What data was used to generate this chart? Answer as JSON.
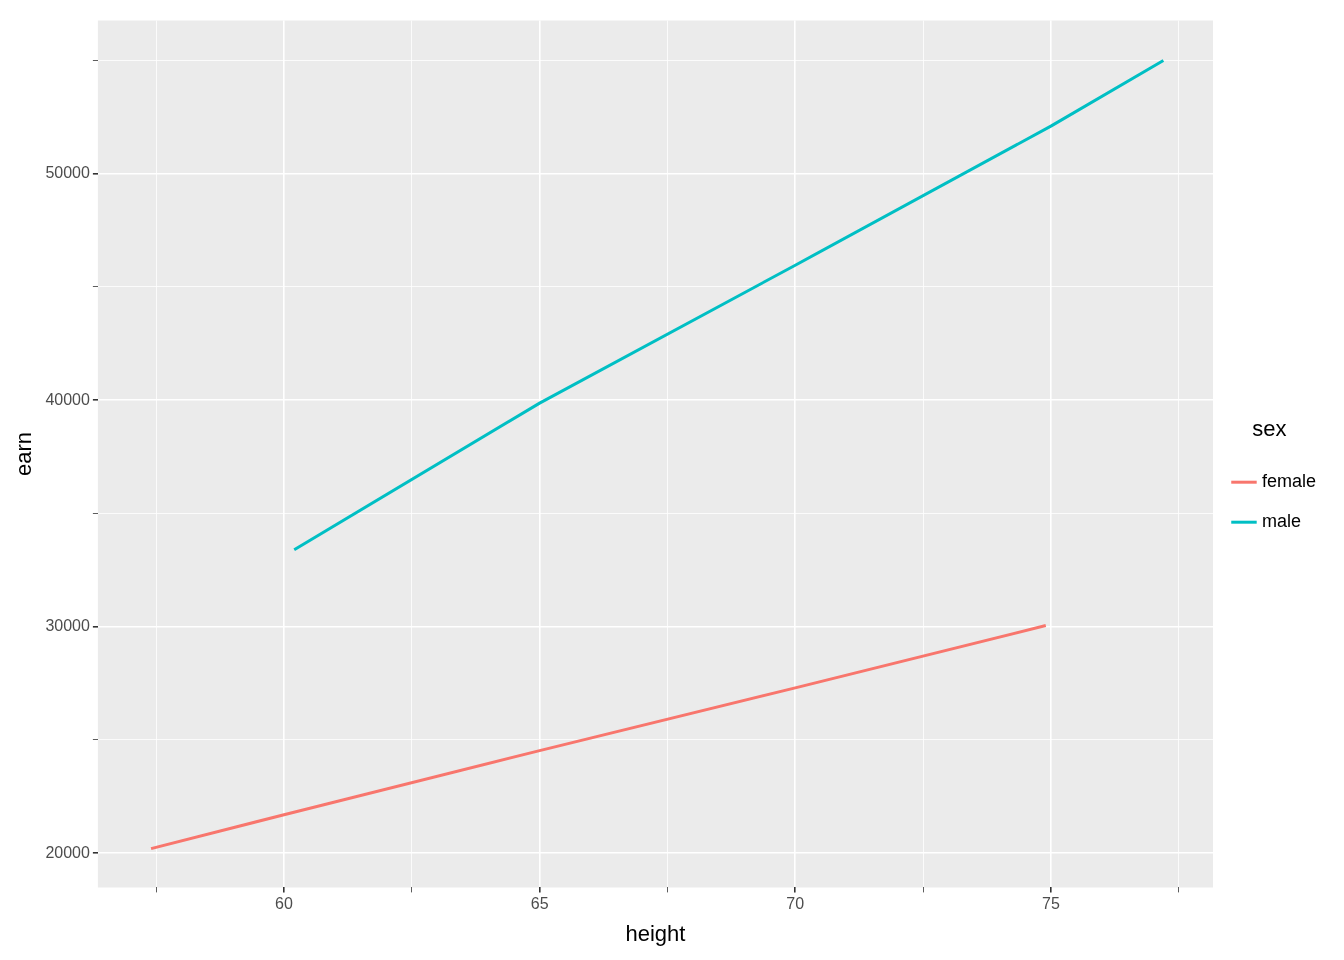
{
  "chart_data": {
    "type": "line",
    "xlabel": "height",
    "ylabel": "earn",
    "legend_title": "sex",
    "legend": "right",
    "grid": true,
    "marker": "none",
    "line_style": "solid",
    "xlim": [
      56.36,
      78.17
    ],
    "ylim": [
      18490,
      56760
    ],
    "xticks": [
      {
        "value": 57.5,
        "label": null
      },
      60,
      {
        "value": 62.5,
        "label": null
      },
      65,
      {
        "value": 67.5,
        "label": null
      },
      70,
      {
        "value": 72.5,
        "label": null
      },
      75,
      {
        "value": 77.5,
        "label": null
      }
    ],
    "yticks": [
      20000,
      {
        "value": 25000,
        "label": null
      },
      30000,
      {
        "value": 35000,
        "label": null
      },
      40000,
      {
        "value": 45000,
        "label": null
      },
      50000,
      {
        "value": 55000,
        "label": null
      }
    ],
    "series": [
      {
        "name": "female",
        "color": "#f8766d",
        "x": [
          57.4,
          60,
          65,
          70,
          74.9
        ],
        "values": [
          20200,
          21700,
          24530,
          27300,
          30050
        ]
      },
      {
        "name": "male",
        "color": "#00bfc4",
        "x": [
          60.2,
          65,
          70,
          75,
          77.2
        ],
        "values": [
          33400,
          39870,
          45960,
          52100,
          55000
        ]
      }
    ]
  }
}
